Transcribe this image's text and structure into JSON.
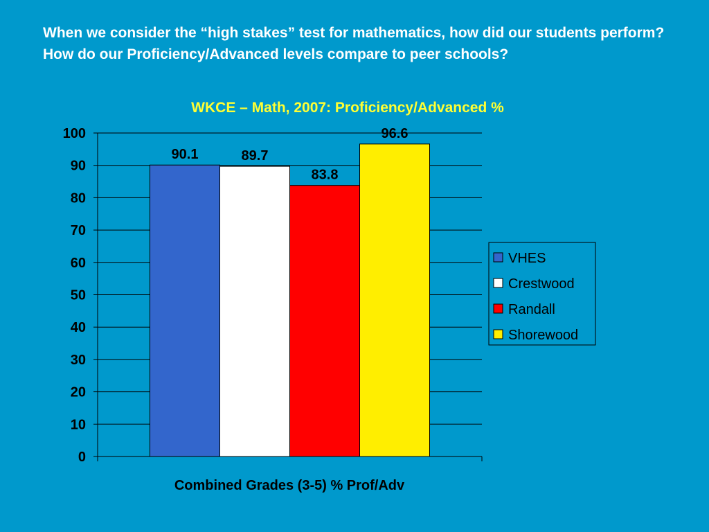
{
  "slide": {
    "question": "When we consider the “high stakes” test for mathematics, how did our students perform? How do our Proficiency/Advanced levels compare to peer schools?"
  },
  "colors": {
    "background": "#0099cc",
    "title": "#ffff33"
  },
  "chart_data": {
    "type": "bar",
    "title": "WKCE – Math, 2007: Proficiency/Advanced %",
    "xlabel": "Combined Grades (3-5) % Prof/Adv",
    "ylabel": "",
    "ylim": [
      0,
      100
    ],
    "yticks": [
      0,
      10,
      20,
      30,
      40,
      50,
      60,
      70,
      80,
      90,
      100
    ],
    "grid": true,
    "legend_position": "right",
    "categories": [
      "Combined Grades (3-5) % Prof/Adv"
    ],
    "series": [
      {
        "name": "VHES",
        "values": [
          90.1
        ],
        "color": "#3366cc"
      },
      {
        "name": "Crestwood",
        "values": [
          89.7
        ],
        "color": "#ffffff"
      },
      {
        "name": "Randall",
        "values": [
          83.8
        ],
        "color": "#ff0000"
      },
      {
        "name": "Shorewood",
        "values": [
          96.6
        ],
        "color": "#ffee00"
      }
    ]
  }
}
